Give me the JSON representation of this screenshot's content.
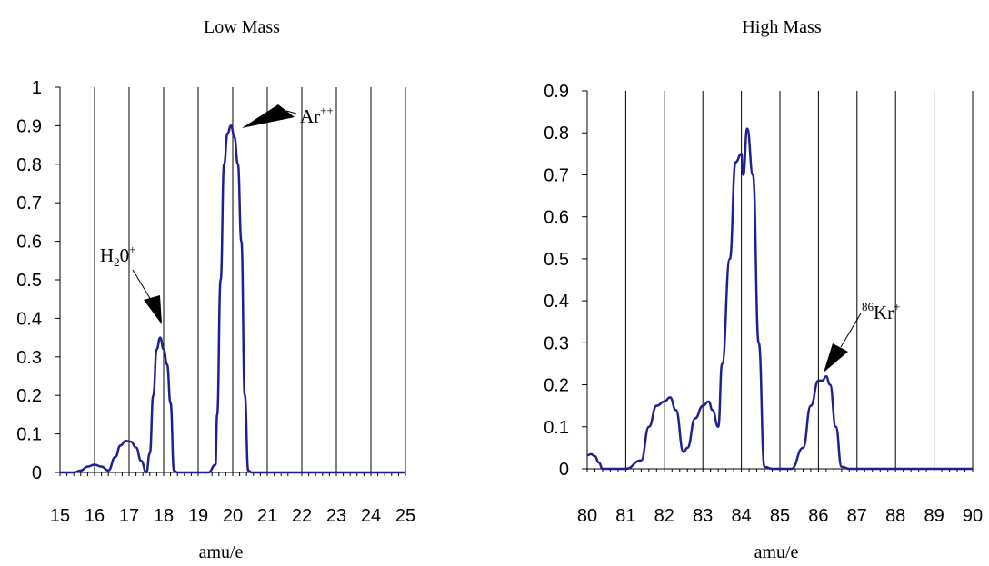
{
  "chart_data": [
    {
      "type": "line",
      "title": "Low Mass",
      "xlabel": "amu/e",
      "ylabel": "",
      "xlim": [
        15,
        25
      ],
      "ylim": [
        0,
        1
      ],
      "xticks": [
        "15",
        "16",
        "17",
        "18",
        "19",
        "20",
        "21",
        "22",
        "23",
        "24",
        "25"
      ],
      "yticks": [
        "0",
        "0.1",
        "0.2",
        "0.3",
        "0.4",
        "0.5",
        "0.6",
        "0.7",
        "0.8",
        "0.9",
        "1"
      ],
      "grid": "vertical",
      "line_color": "#1f1f8f",
      "series": [
        {
          "x": [
            15,
            15.4,
            15.6,
            15.8,
            16,
            16.2,
            16.4,
            16.6,
            16.75,
            16.9,
            17.05,
            17.2,
            17.35,
            17.5,
            17.6,
            17.7,
            17.8,
            17.9,
            18,
            18.1,
            18.2,
            18.3,
            18.4,
            18.5,
            18.7,
            19,
            19.3,
            19.5,
            19.55,
            19.65,
            19.75,
            19.85,
            19.95,
            20.05,
            20.15,
            20.25,
            20.35,
            20.45,
            20.55,
            21,
            25
          ],
          "y": [
            0,
            0,
            0.005,
            0.015,
            0.02,
            0.015,
            0.005,
            0.04,
            0.07,
            0.082,
            0.08,
            0.065,
            0.03,
            0,
            0.05,
            0.2,
            0.32,
            0.35,
            0.32,
            0.28,
            0.18,
            0.005,
            0,
            0,
            0,
            0,
            0,
            0.02,
            0.15,
            0.5,
            0.8,
            0.88,
            0.9,
            0.87,
            0.8,
            0.6,
            0.2,
            0.005,
            0,
            0,
            0
          ]
        }
      ],
      "annotations": [
        {
          "text": "Ar",
          "sup": "++",
          "x": 20,
          "y": 0.9
        },
        {
          "text": "H",
          "sub": "2",
          "text2": "0",
          "sup": "+",
          "x": 18,
          "y": 0.35
        }
      ]
    },
    {
      "type": "line",
      "title": "High Mass",
      "xlabel": "amu/e",
      "ylabel": "",
      "xlim": [
        80,
        90
      ],
      "ylim": [
        0,
        0.9
      ],
      "xticks": [
        "80",
        "81",
        "82",
        "83",
        "84",
        "85",
        "86",
        "87",
        "88",
        "89",
        "90"
      ],
      "yticks": [
        "0",
        "0.1",
        "0.2",
        "0.3",
        "0.4",
        "0.5",
        "0.6",
        "0.7",
        "0.8",
        "0.9"
      ],
      "grid": "vertical",
      "line_color": "#1f1f8f",
      "series": [
        {
          "x": [
            80,
            80.1,
            80.2,
            80.3,
            80.4,
            80.5,
            81,
            81.4,
            81.6,
            81.8,
            82,
            82.15,
            82.3,
            82.5,
            82.6,
            82.8,
            83,
            83.15,
            83.25,
            83.4,
            83.5,
            83.7,
            83.85,
            84,
            84.05,
            84.15,
            84.3,
            84.45,
            84.6,
            84.8,
            85,
            85.3,
            85.6,
            85.8,
            86,
            86.1,
            86.2,
            86.3,
            86.45,
            86.6,
            86.8,
            90
          ],
          "y": [
            0.032,
            0.035,
            0.03,
            0.015,
            0,
            0,
            0,
            0.02,
            0.1,
            0.15,
            0.16,
            0.17,
            0.14,
            0.04,
            0.05,
            0.12,
            0.15,
            0.16,
            0.14,
            0.1,
            0.25,
            0.5,
            0.73,
            0.75,
            0.7,
            0.81,
            0.7,
            0.3,
            0.005,
            0,
            0,
            0,
            0.05,
            0.15,
            0.21,
            0.21,
            0.22,
            0.2,
            0.1,
            0.005,
            0,
            0
          ]
        }
      ],
      "annotations": [
        {
          "pre_sup": "86",
          "text": "Kr",
          "sup": "+",
          "x": 86.1,
          "y": 0.22
        }
      ]
    }
  ]
}
